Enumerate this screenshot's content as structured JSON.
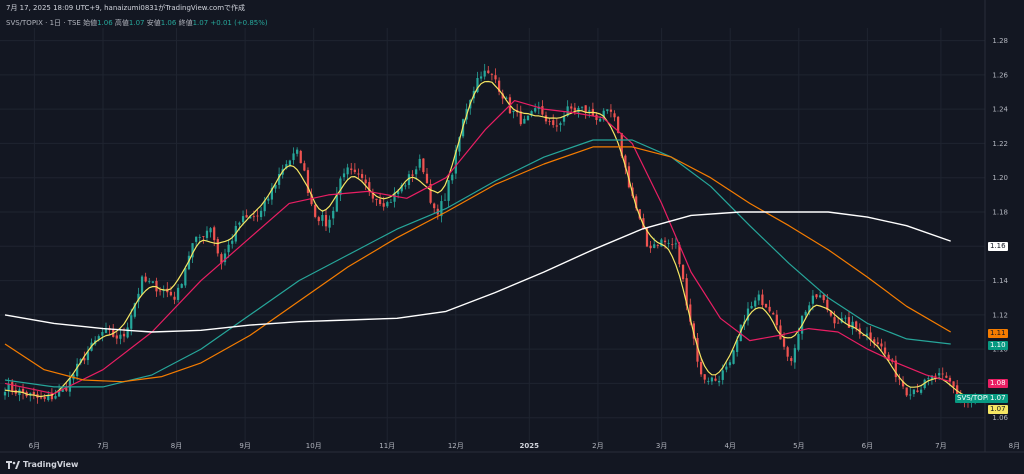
{
  "header": {
    "text": "7月 17, 2025 18:09 UTC+9, hanaizumi0831がTradingView.comで作成"
  },
  "legend": {
    "symbol": "SVS/TOPIX · 1日 · TSE",
    "open_label": "始値",
    "open": "1.06",
    "high_label": "高値",
    "high": "1.07",
    "low_label": "安値",
    "low": "1.06",
    "close_label": "終値",
    "close": "1.07",
    "change": "+0.01 (+0.85%)"
  },
  "colors": {
    "background": "#131722",
    "up": "#26a69a",
    "down": "#ef5350",
    "ma_yellow": "#f5e663",
    "ma_pink": "#e91e63",
    "ma_teal": "#26a69a",
    "ma_orange": "#f57c00",
    "ma_white": "#ffffff"
  },
  "price_tags": [
    {
      "label": "1.16",
      "value": 1.16,
      "bg": "#ffffff",
      "fg": "#131722"
    },
    {
      "label": "1.11",
      "value": 1.109,
      "bg": "#f57c00",
      "fg": "#131722"
    },
    {
      "label": "1.10",
      "value": 1.102,
      "bg": "#089981",
      "fg": "#ffffff"
    },
    {
      "label": "1.08",
      "value": 1.08,
      "bg": "#e91e63",
      "fg": "#ffffff"
    },
    {
      "label": "SVS/TOPIX",
      "value": 1.0715,
      "bg": "#089981",
      "fg": "#ffffff"
    },
    {
      "label": "1.07",
      "value": 1.0715,
      "bg": "#089981",
      "fg": "#ffffff"
    },
    {
      "label": "1.07",
      "value": 1.065,
      "bg": "#f5e663",
      "fg": "#131722"
    }
  ],
  "footer": {
    "brand": "TradingView"
  },
  "chart_data": {
    "type": "candlestick",
    "symbol": "SVS/TOPIX",
    "ylim": [
      1.047,
      1.285
    ],
    "y_ticks": [
      "1.06",
      "1.08",
      "1.10",
      "1.12",
      "1.14",
      "1.16",
      "1.18",
      "1.20",
      "1.22",
      "1.24",
      "1.26",
      "1.28"
    ],
    "x_ticks": [
      {
        "label": "6月",
        "pos": 0.03,
        "bold": false
      },
      {
        "label": "7月",
        "pos": 0.1,
        "bold": false
      },
      {
        "label": "8月",
        "pos": 0.175,
        "bold": false
      },
      {
        "label": "9月",
        "pos": 0.245,
        "bold": false
      },
      {
        "label": "10月",
        "pos": 0.315,
        "bold": false
      },
      {
        "label": "11月",
        "pos": 0.39,
        "bold": false
      },
      {
        "label": "12月",
        "pos": 0.46,
        "bold": false
      },
      {
        "label": "2025",
        "pos": 0.535,
        "bold": true
      },
      {
        "label": "2月",
        "pos": 0.605,
        "bold": false
      },
      {
        "label": "3月",
        "pos": 0.67,
        "bold": false
      },
      {
        "label": "4月",
        "pos": 0.74,
        "bold": false
      },
      {
        "label": "5月",
        "pos": 0.81,
        "bold": false
      },
      {
        "label": "6月",
        "pos": 0.88,
        "bold": false
      },
      {
        "label": "7月",
        "pos": 0.955,
        "bold": false
      },
      {
        "label": "8月",
        "pos": 1.03,
        "bold": false
      }
    ],
    "close_path": [
      [
        0.0,
        1.078
      ],
      [
        0.02,
        1.074
      ],
      [
        0.04,
        1.07
      ],
      [
        0.06,
        1.076
      ],
      [
        0.08,
        1.095
      ],
      [
        0.1,
        1.11
      ],
      [
        0.12,
        1.106
      ],
      [
        0.14,
        1.14
      ],
      [
        0.16,
        1.135
      ],
      [
        0.175,
        1.13
      ],
      [
        0.19,
        1.16
      ],
      [
        0.21,
        1.172
      ],
      [
        0.22,
        1.15
      ],
      [
        0.24,
        1.175
      ],
      [
        0.26,
        1.178
      ],
      [
        0.285,
        1.208
      ],
      [
        0.3,
        1.215
      ],
      [
        0.315,
        1.18
      ],
      [
        0.33,
        1.172
      ],
      [
        0.345,
        1.205
      ],
      [
        0.36,
        1.2
      ],
      [
        0.38,
        1.188
      ],
      [
        0.39,
        1.185
      ],
      [
        0.41,
        1.198
      ],
      [
        0.425,
        1.21
      ],
      [
        0.44,
        1.175
      ],
      [
        0.455,
        1.2
      ],
      [
        0.47,
        1.24
      ],
      [
        0.485,
        1.262
      ],
      [
        0.5,
        1.258
      ],
      [
        0.515,
        1.24
      ],
      [
        0.53,
        1.232
      ],
      [
        0.545,
        1.24
      ],
      [
        0.56,
        1.228
      ],
      [
        0.575,
        1.24
      ],
      [
        0.59,
        1.24
      ],
      [
        0.605,
        1.235
      ],
      [
        0.62,
        1.238
      ],
      [
        0.635,
        1.2
      ],
      [
        0.645,
        1.18
      ],
      [
        0.655,
        1.16
      ],
      [
        0.67,
        1.163
      ],
      [
        0.685,
        1.16
      ],
      [
        0.7,
        1.115
      ],
      [
        0.71,
        1.084
      ],
      [
        0.725,
        1.082
      ],
      [
        0.74,
        1.09
      ],
      [
        0.755,
        1.12
      ],
      [
        0.77,
        1.13
      ],
      [
        0.785,
        1.122
      ],
      [
        0.8,
        1.09
      ],
      [
        0.815,
        1.122
      ],
      [
        0.83,
        1.132
      ],
      [
        0.845,
        1.118
      ],
      [
        0.86,
        1.115
      ],
      [
        0.875,
        1.11
      ],
      [
        0.89,
        1.105
      ],
      [
        0.905,
        1.09
      ],
      [
        0.92,
        1.076
      ],
      [
        0.935,
        1.078
      ],
      [
        0.95,
        1.085
      ],
      [
        0.965,
        1.08
      ],
      [
        0.98,
        1.068
      ],
      [
        0.99,
        1.071
      ]
    ],
    "series": [
      {
        "name": "",
        "color": "#f5e663",
        "width": 1.2,
        "smooth": 2,
        "points": []
      },
      {
        "name": "",
        "color": "#e91e63",
        "width": 1.2,
        "points": [
          [
            0.0,
            1.08
          ],
          [
            0.05,
            1.074
          ],
          [
            0.1,
            1.088
          ],
          [
            0.15,
            1.11
          ],
          [
            0.2,
            1.14
          ],
          [
            0.25,
            1.165
          ],
          [
            0.29,
            1.185
          ],
          [
            0.33,
            1.19
          ],
          [
            0.37,
            1.192
          ],
          [
            0.41,
            1.188
          ],
          [
            0.45,
            1.2
          ],
          [
            0.49,
            1.228
          ],
          [
            0.52,
            1.245
          ],
          [
            0.55,
            1.24
          ],
          [
            0.58,
            1.238
          ],
          [
            0.61,
            1.235
          ],
          [
            0.64,
            1.22
          ],
          [
            0.67,
            1.185
          ],
          [
            0.7,
            1.145
          ],
          [
            0.73,
            1.118
          ],
          [
            0.76,
            1.105
          ],
          [
            0.79,
            1.108
          ],
          [
            0.82,
            1.112
          ],
          [
            0.85,
            1.11
          ],
          [
            0.88,
            1.1
          ],
          [
            0.91,
            1.092
          ],
          [
            0.94,
            1.085
          ],
          [
            0.965,
            1.081
          ]
        ]
      },
      {
        "name": "",
        "color": "#26a69a",
        "width": 1.2,
        "points": [
          [
            0.0,
            1.082
          ],
          [
            0.05,
            1.078
          ],
          [
            0.1,
            1.078
          ],
          [
            0.15,
            1.085
          ],
          [
            0.2,
            1.1
          ],
          [
            0.25,
            1.12
          ],
          [
            0.3,
            1.14
          ],
          [
            0.35,
            1.155
          ],
          [
            0.4,
            1.17
          ],
          [
            0.45,
            1.182
          ],
          [
            0.5,
            1.198
          ],
          [
            0.55,
            1.212
          ],
          [
            0.6,
            1.222
          ],
          [
            0.64,
            1.222
          ],
          [
            0.68,
            1.212
          ],
          [
            0.72,
            1.195
          ],
          [
            0.76,
            1.172
          ],
          [
            0.8,
            1.15
          ],
          [
            0.84,
            1.13
          ],
          [
            0.88,
            1.115
          ],
          [
            0.92,
            1.106
          ],
          [
            0.965,
            1.103
          ]
        ]
      },
      {
        "name": "",
        "color": "#f57c00",
        "width": 1.2,
        "points": [
          [
            0.0,
            1.103
          ],
          [
            0.04,
            1.088
          ],
          [
            0.08,
            1.082
          ],
          [
            0.12,
            1.081
          ],
          [
            0.16,
            1.084
          ],
          [
            0.2,
            1.092
          ],
          [
            0.25,
            1.108
          ],
          [
            0.3,
            1.128
          ],
          [
            0.35,
            1.148
          ],
          [
            0.4,
            1.165
          ],
          [
            0.45,
            1.18
          ],
          [
            0.5,
            1.196
          ],
          [
            0.55,
            1.208
          ],
          [
            0.6,
            1.218
          ],
          [
            0.64,
            1.218
          ],
          [
            0.68,
            1.212
          ],
          [
            0.72,
            1.2
          ],
          [
            0.76,
            1.185
          ],
          [
            0.8,
            1.172
          ],
          [
            0.84,
            1.158
          ],
          [
            0.88,
            1.142
          ],
          [
            0.92,
            1.125
          ],
          [
            0.965,
            1.11
          ]
        ]
      },
      {
        "name": "",
        "color": "#ffffff",
        "width": 1.4,
        "points": [
          [
            0.0,
            1.12
          ],
          [
            0.05,
            1.115
          ],
          [
            0.1,
            1.112
          ],
          [
            0.15,
            1.11
          ],
          [
            0.2,
            1.111
          ],
          [
            0.25,
            1.114
          ],
          [
            0.3,
            1.116
          ],
          [
            0.35,
            1.117
          ],
          [
            0.4,
            1.118
          ],
          [
            0.45,
            1.122
          ],
          [
            0.5,
            1.133
          ],
          [
            0.55,
            1.145
          ],
          [
            0.6,
            1.158
          ],
          [
            0.65,
            1.17
          ],
          [
            0.7,
            1.178
          ],
          [
            0.75,
            1.18
          ],
          [
            0.8,
            1.18
          ],
          [
            0.84,
            1.18
          ],
          [
            0.88,
            1.177
          ],
          [
            0.92,
            1.172
          ],
          [
            0.965,
            1.163
          ]
        ]
      }
    ]
  }
}
